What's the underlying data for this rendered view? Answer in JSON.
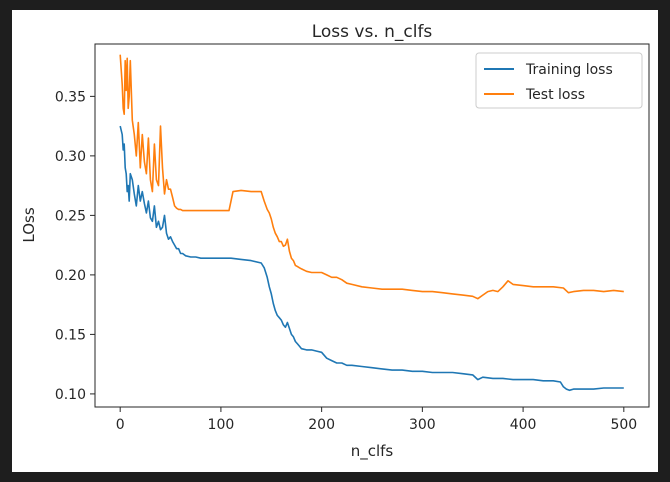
{
  "chart_data": {
    "type": "line",
    "title": "Loss vs. n_clfs",
    "xlabel": "n_clfs",
    "ylabel": "LOss",
    "xlim": [
      -25,
      525
    ],
    "ylim": [
      0.089,
      0.394
    ],
    "xticks": [
      0,
      100,
      200,
      300,
      400,
      500
    ],
    "yticks": [
      0.1,
      0.15,
      0.2,
      0.25,
      0.3,
      0.35
    ],
    "grid": false,
    "legend": {
      "placement": "top-right"
    },
    "series": [
      {
        "name": "Training loss",
        "color": "#1f77b4",
        "x": [
          0,
          2,
          3,
          4,
          5,
          6,
          7,
          8,
          9,
          10,
          12,
          14,
          16,
          18,
          20,
          22,
          24,
          26,
          28,
          30,
          32,
          34,
          36,
          38,
          40,
          42,
          44,
          46,
          48,
          50,
          52,
          54,
          56,
          58,
          60,
          62,
          65,
          70,
          75,
          80,
          90,
          100,
          110,
          120,
          130,
          140,
          143,
          146,
          148,
          150,
          152,
          154,
          156,
          158,
          160,
          162,
          164,
          166,
          168,
          170,
          172,
          174,
          176,
          178,
          180,
          185,
          190,
          195,
          200,
          205,
          210,
          215,
          220,
          225,
          230,
          240,
          250,
          260,
          270,
          280,
          290,
          300,
          310,
          320,
          330,
          340,
          350,
          355,
          360,
          370,
          380,
          390,
          400,
          410,
          420,
          430,
          437,
          440,
          443,
          446,
          450,
          460,
          470,
          480,
          490,
          500
        ],
        "y": [
          0.325,
          0.318,
          0.305,
          0.31,
          0.29,
          0.285,
          0.27,
          0.275,
          0.262,
          0.285,
          0.28,
          0.268,
          0.258,
          0.275,
          0.262,
          0.27,
          0.26,
          0.252,
          0.262,
          0.248,
          0.245,
          0.258,
          0.24,
          0.245,
          0.238,
          0.24,
          0.25,
          0.235,
          0.23,
          0.232,
          0.228,
          0.225,
          0.222,
          0.222,
          0.218,
          0.218,
          0.216,
          0.215,
          0.215,
          0.214,
          0.214,
          0.214,
          0.214,
          0.213,
          0.212,
          0.21,
          0.206,
          0.198,
          0.19,
          0.184,
          0.176,
          0.17,
          0.166,
          0.164,
          0.162,
          0.158,
          0.156,
          0.16,
          0.155,
          0.15,
          0.148,
          0.144,
          0.142,
          0.14,
          0.138,
          0.137,
          0.137,
          0.136,
          0.135,
          0.13,
          0.128,
          0.126,
          0.126,
          0.124,
          0.124,
          0.123,
          0.122,
          0.121,
          0.12,
          0.12,
          0.119,
          0.119,
          0.118,
          0.118,
          0.118,
          0.117,
          0.116,
          0.112,
          0.114,
          0.113,
          0.113,
          0.112,
          0.112,
          0.112,
          0.111,
          0.111,
          0.11,
          0.106,
          0.104,
          0.103,
          0.104,
          0.104,
          0.104,
          0.105,
          0.105,
          0.105
        ]
      },
      {
        "name": "Test loss",
        "color": "#ff7f0e",
        "x": [
          0,
          2,
          3,
          4,
          5,
          6,
          7,
          8,
          9,
          10,
          12,
          14,
          16,
          18,
          20,
          22,
          24,
          26,
          28,
          30,
          32,
          34,
          36,
          38,
          40,
          42,
          44,
          46,
          48,
          50,
          52,
          54,
          56,
          58,
          60,
          62,
          65,
          70,
          75,
          80,
          90,
          100,
          108,
          110,
          112,
          120,
          130,
          140,
          143,
          146,
          148,
          150,
          152,
          154,
          156,
          158,
          160,
          162,
          164,
          166,
          168,
          170,
          172,
          174,
          176,
          178,
          180,
          185,
          190,
          195,
          200,
          205,
          210,
          215,
          220,
          225,
          230,
          240,
          250,
          260,
          270,
          280,
          290,
          300,
          310,
          320,
          330,
          340,
          350,
          355,
          360,
          365,
          370,
          375,
          380,
          385,
          390,
          400,
          410,
          420,
          430,
          440,
          445,
          450,
          460,
          470,
          480,
          490,
          500
        ],
        "y": [
          0.385,
          0.36,
          0.34,
          0.335,
          0.38,
          0.355,
          0.382,
          0.34,
          0.35,
          0.38,
          0.33,
          0.318,
          0.3,
          0.328,
          0.29,
          0.318,
          0.295,
          0.285,
          0.315,
          0.28,
          0.27,
          0.31,
          0.28,
          0.275,
          0.325,
          0.29,
          0.268,
          0.28,
          0.272,
          0.272,
          0.265,
          0.258,
          0.256,
          0.255,
          0.255,
          0.254,
          0.254,
          0.254,
          0.254,
          0.254,
          0.254,
          0.254,
          0.254,
          0.262,
          0.27,
          0.271,
          0.27,
          0.27,
          0.262,
          0.255,
          0.252,
          0.247,
          0.24,
          0.235,
          0.232,
          0.228,
          0.228,
          0.224,
          0.225,
          0.23,
          0.22,
          0.214,
          0.212,
          0.208,
          0.207,
          0.206,
          0.205,
          0.203,
          0.202,
          0.202,
          0.202,
          0.2,
          0.198,
          0.198,
          0.196,
          0.193,
          0.192,
          0.19,
          0.189,
          0.188,
          0.188,
          0.188,
          0.187,
          0.186,
          0.186,
          0.185,
          0.184,
          0.183,
          0.182,
          0.18,
          0.183,
          0.186,
          0.187,
          0.186,
          0.19,
          0.195,
          0.192,
          0.191,
          0.19,
          0.19,
          0.19,
          0.189,
          0.185,
          0.186,
          0.187,
          0.187,
          0.186,
          0.187,
          0.186
        ]
      }
    ]
  }
}
